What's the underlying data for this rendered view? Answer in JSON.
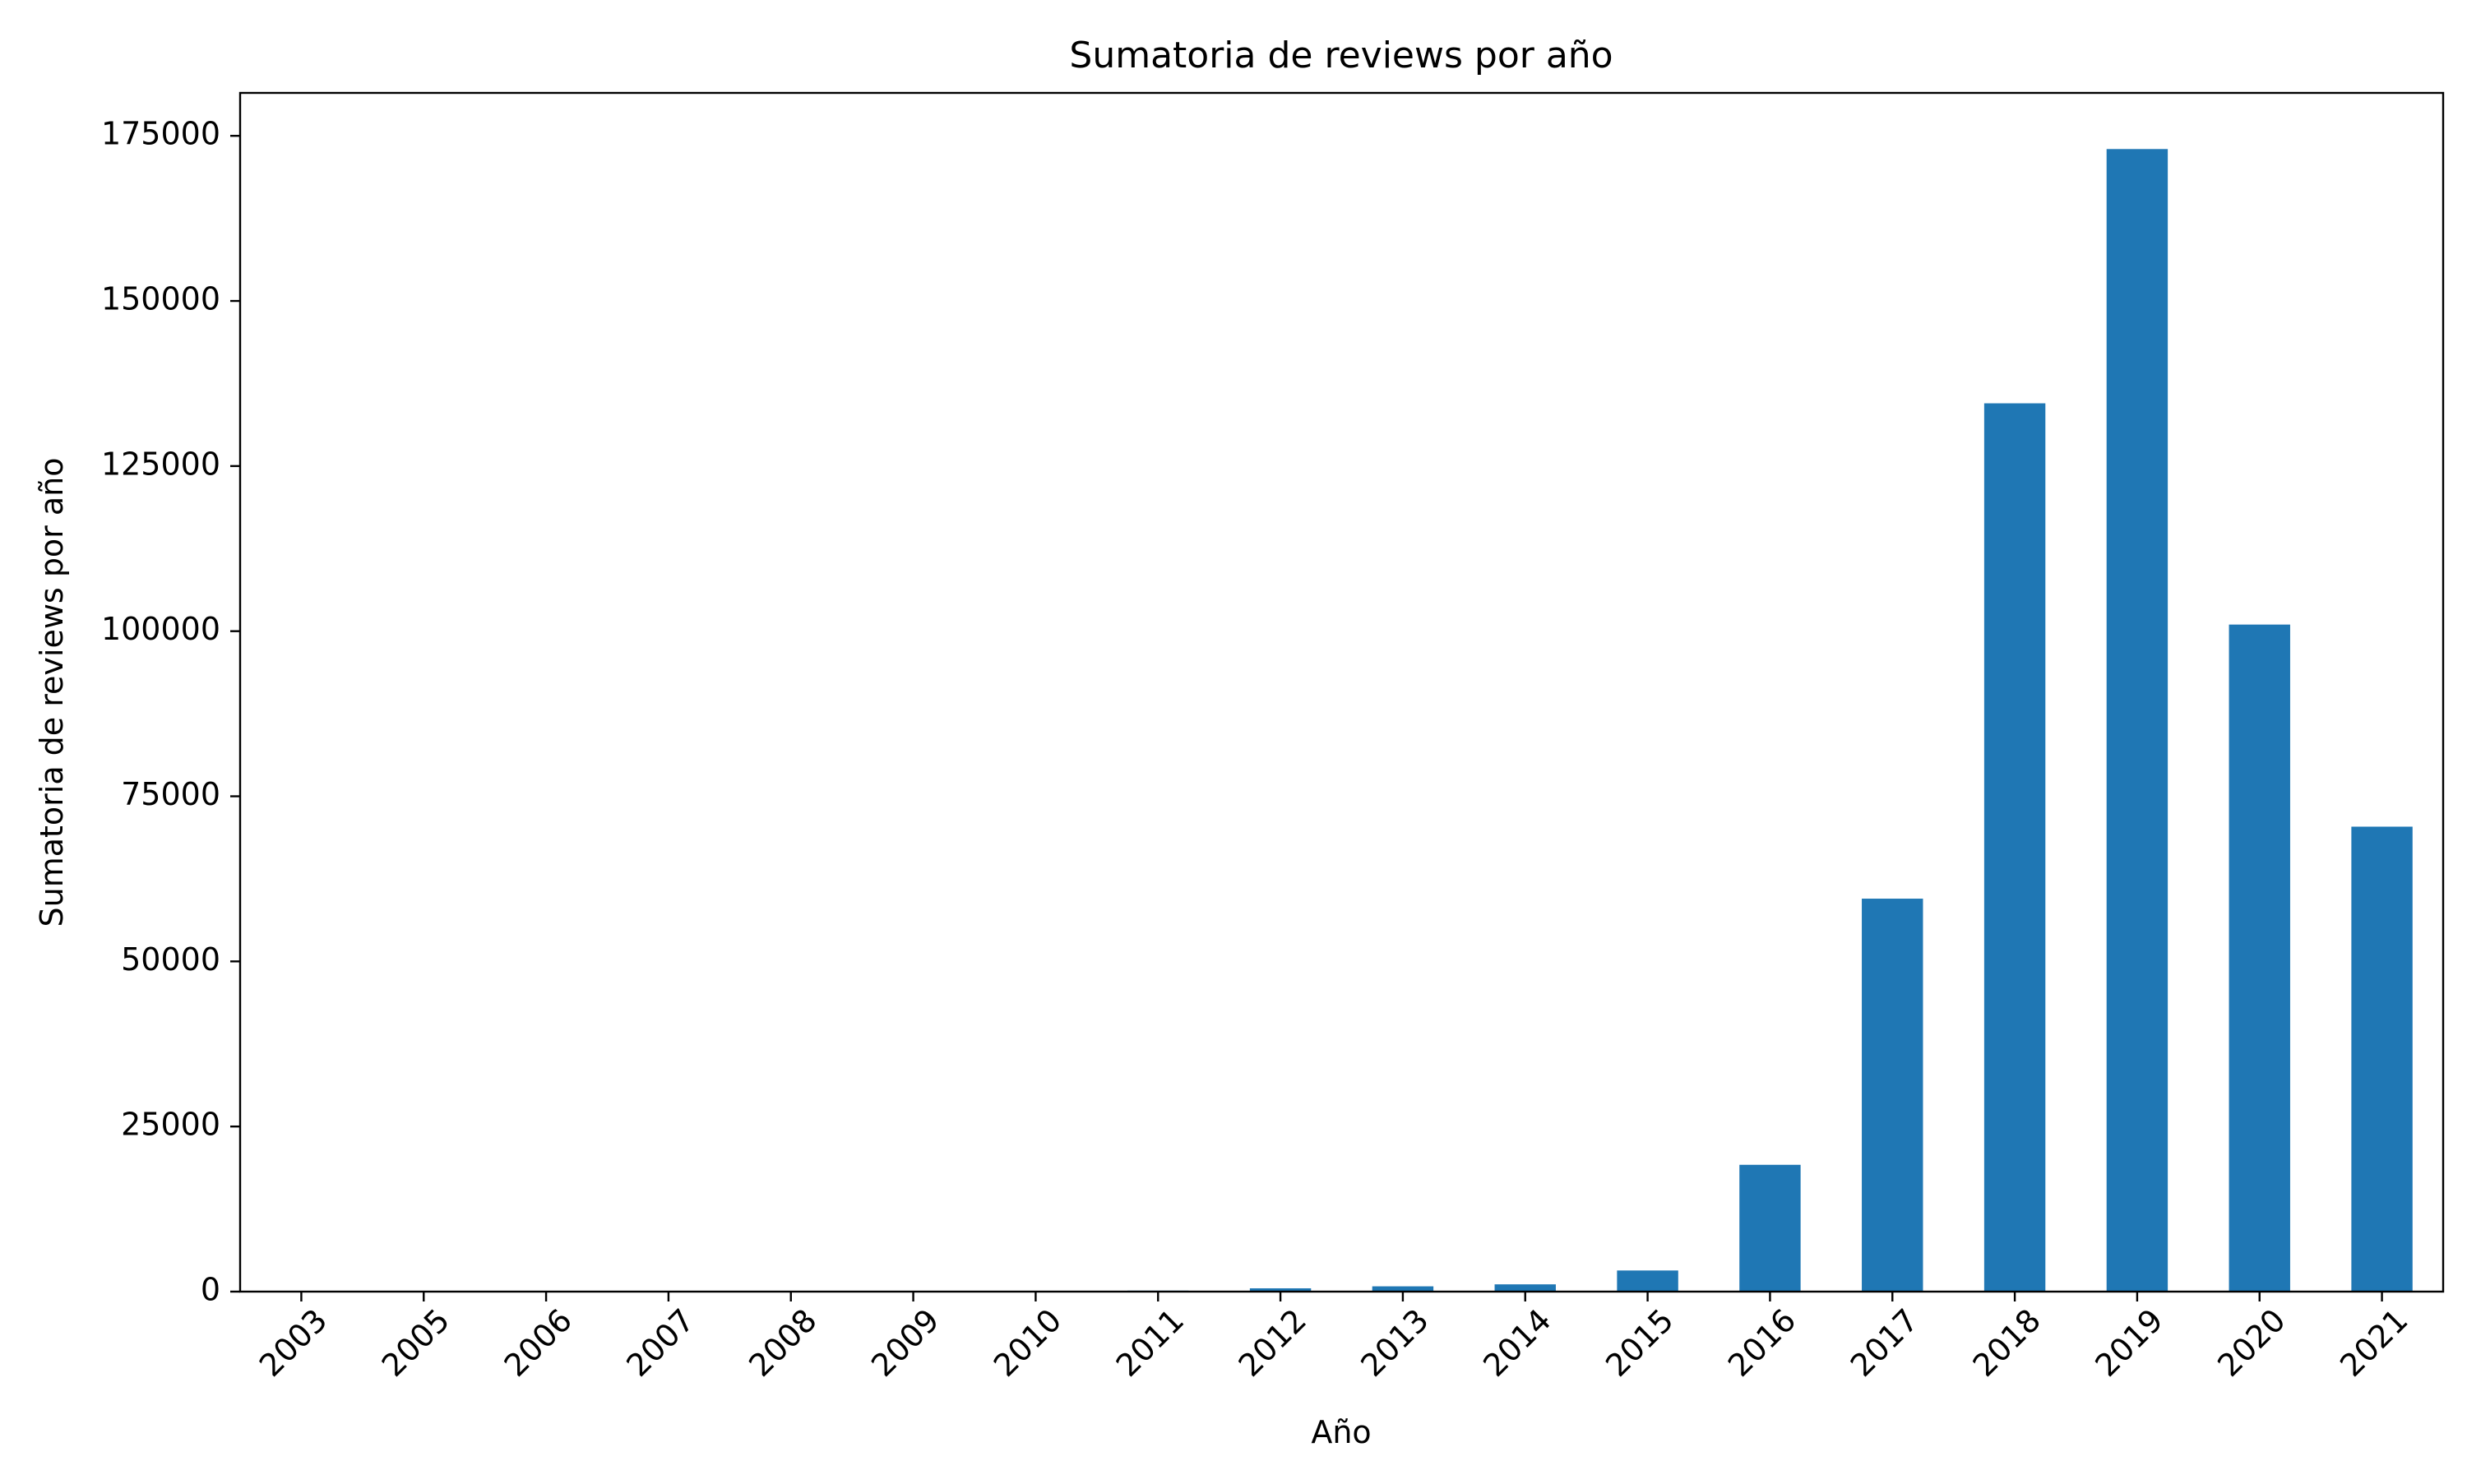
{
  "chart_data": {
    "type": "bar",
    "title": "Sumatoria de reviews por año",
    "xlabel": "Año",
    "ylabel": "Sumatoria de reviews por año",
    "categories": [
      "2003",
      "2005",
      "2006",
      "2007",
      "2008",
      "2009",
      "2010",
      "2011",
      "2012",
      "2013",
      "2014",
      "2015",
      "2016",
      "2017",
      "2018",
      "2019",
      "2020",
      "2021"
    ],
    "values": [
      5,
      5,
      5,
      10,
      15,
      20,
      40,
      150,
      500,
      800,
      1100,
      3200,
      19200,
      59500,
      134500,
      173000,
      101000,
      70400
    ],
    "ylim": [
      0,
      181500
    ],
    "yticks": [
      0,
      25000,
      50000,
      75000,
      100000,
      125000,
      150000,
      175000
    ],
    "grid": false,
    "colors": {
      "bar": "#1f77b4",
      "axis": "#000000",
      "background": "#ffffff"
    }
  }
}
